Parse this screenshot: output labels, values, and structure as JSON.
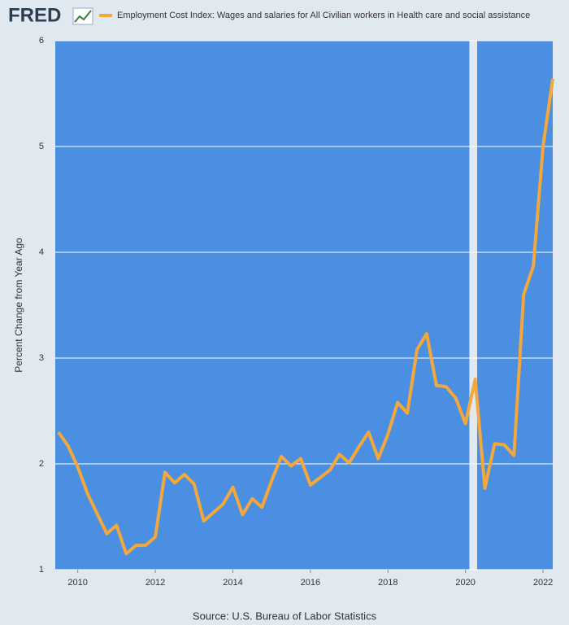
{
  "chart_data": {
    "type": "line",
    "logo": "FRED",
    "y_label": "Percent Change from Year Ago",
    "source": "Source: U.S. Bureau of Labor Statistics",
    "x": [
      2009.5,
      2009.75,
      2010.0,
      2010.25,
      2010.5,
      2010.75,
      2011.0,
      2011.25,
      2011.5,
      2011.75,
      2012.0,
      2012.25,
      2012.5,
      2012.75,
      2013.0,
      2013.25,
      2013.5,
      2013.75,
      2014.0,
      2014.25,
      2014.5,
      2014.75,
      2015.0,
      2015.25,
      2015.5,
      2015.75,
      2016.0,
      2016.25,
      2016.5,
      2016.75,
      2017.0,
      2017.25,
      2017.5,
      2017.75,
      2018.0,
      2018.25,
      2018.5,
      2018.75,
      2019.0,
      2019.25,
      2019.5,
      2019.75,
      2020.0,
      2020.25,
      2020.5,
      2020.75,
      2021.0,
      2021.25,
      2021.5,
      2021.75,
      2022.0,
      2022.25
    ],
    "series": [
      {
        "name": "Employment Cost Index: Wages and salaries for All Civilian workers in Health care and social assistance",
        "color": "#f4a73b",
        "values": [
          2.3,
          2.17,
          1.97,
          1.72,
          1.53,
          1.34,
          1.42,
          1.15,
          1.23,
          1.23,
          1.31,
          1.92,
          1.82,
          1.9,
          1.81,
          1.46,
          1.54,
          1.62,
          1.78,
          1.52,
          1.67,
          1.59,
          1.84,
          2.07,
          1.98,
          2.05,
          1.8,
          1.87,
          1.94,
          2.09,
          2.01,
          2.16,
          2.3,
          2.05,
          2.28,
          2.58,
          2.48,
          3.08,
          3.23,
          2.74,
          2.73,
          2.62,
          2.38,
          2.8,
          1.77,
          2.19,
          2.18,
          2.08,
          3.6,
          3.87,
          5.0,
          5.64
        ]
      }
    ],
    "shaded_periods": [
      [
        2020.1,
        2020.3
      ]
    ],
    "xlim": [
      2009.42,
      2022.25
    ],
    "xticks": [
      2010,
      2012,
      2014,
      2016,
      2018,
      2020,
      2022
    ],
    "ylim": [
      1,
      6
    ],
    "yticks": [
      1,
      2,
      3,
      4,
      5,
      6
    ],
    "grid": true,
    "plot_color": "#4a8fe2",
    "shade_color": "#e1e9f0"
  }
}
